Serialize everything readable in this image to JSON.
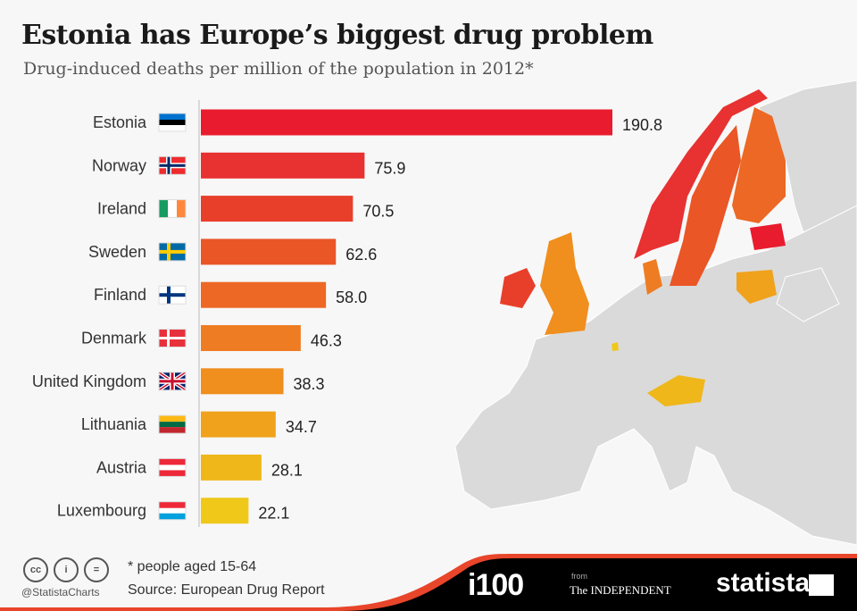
{
  "title": "Estonia has Europe’s biggest drug problem",
  "subtitle": "Drug-induced deaths per million of the population in 2012*",
  "chart_data": {
    "type": "bar",
    "orientation": "horizontal",
    "title": "Estonia has Europe’s biggest drug problem",
    "subtitle": "Drug-induced deaths per million of the population in 2012*",
    "categories": [
      "Estonia",
      "Norway",
      "Ireland",
      "Sweden",
      "Finland",
      "Denmark",
      "United Kingdom",
      "Lithuania",
      "Austria",
      "Luxembourg"
    ],
    "values": [
      190.8,
      75.9,
      70.5,
      62.6,
      58.0,
      46.3,
      38.3,
      34.7,
      28.1,
      22.1
    ],
    "value_labels": [
      "190.8",
      "75.9",
      "70.5",
      "62.6",
      "58.0",
      "46.3",
      "38.3",
      "34.7",
      "28.1",
      "22.1"
    ],
    "colors": [
      "#e81c2e",
      "#e83131",
      "#e83f2a",
      "#ea5626",
      "#ec6824",
      "#ee7c22",
      "#f08e1e",
      "#f0a21c",
      "#efb71a",
      "#efc81a"
    ],
    "flags": [
      "estonia-flag",
      "norway-flag",
      "ireland-flag",
      "sweden-flag",
      "finland-flag",
      "denmark-flag",
      "uk-flag",
      "lithuania-flag",
      "austria-flag",
      "luxembourg-flag"
    ],
    "xlim": [
      0,
      190.8
    ],
    "grid": false,
    "legend": "none"
  },
  "footer": {
    "note": "* people aged 15-64",
    "source": "Source: European Drug Report",
    "handle": "@StatistaCharts",
    "license_icons": [
      "cc",
      "by",
      "nd"
    ],
    "logo_i100": "i100",
    "from": "from",
    "independent": "The INDEPENDENT",
    "statista": "statista"
  },
  "map": {
    "base_color": "#dadada",
    "accent_color": "#e8192c"
  }
}
